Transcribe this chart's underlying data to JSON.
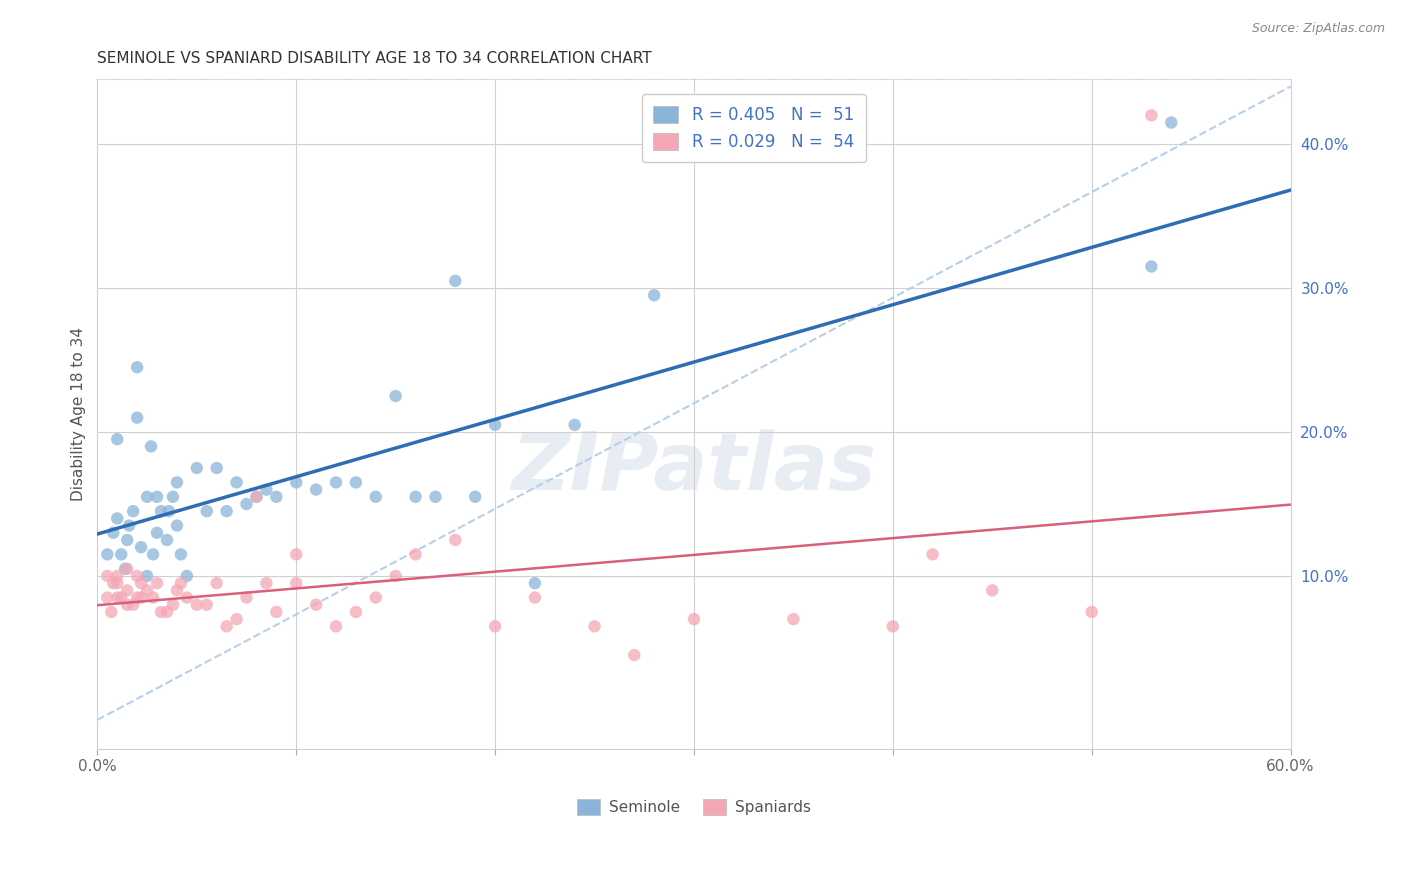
{
  "title": "SEMINOLE VS SPANIARD DISABILITY AGE 18 TO 34 CORRELATION CHART",
  "source_text": "Source: ZipAtlas.com",
  "ylabel": "Disability Age 18 to 34",
  "xlim": [
    0.0,
    0.6
  ],
  "ylim": [
    -0.02,
    0.445
  ],
  "xticks": [
    0.0,
    0.1,
    0.2,
    0.3,
    0.4,
    0.5,
    0.6
  ],
  "yticks_right": [
    0.1,
    0.2,
    0.3,
    0.4
  ],
  "ytick_labels_right": [
    "10.0%",
    "20.0%",
    "30.0%",
    "40.0%"
  ],
  "seminole_color": "#8ab4d8",
  "spaniard_color": "#f4a7b4",
  "seminole_line_color": "#2e6db4",
  "spaniard_line_color": "#d95f7a",
  "diagonal_line_color": "#b8cfe8",
  "background_color": "#ffffff",
  "grid_color": "#d0d0d0",
  "title_color": "#333333",
  "axis_label_color": "#555555",
  "right_tick_color": "#4472c4",
  "legend_box_color": "#cccccc",
  "seminole_x": [
    0.005,
    0.008,
    0.01,
    0.01,
    0.012,
    0.014,
    0.015,
    0.016,
    0.018,
    0.02,
    0.02,
    0.022,
    0.025,
    0.025,
    0.027,
    0.028,
    0.03,
    0.03,
    0.032,
    0.035,
    0.036,
    0.038,
    0.04,
    0.04,
    0.042,
    0.045,
    0.05,
    0.055,
    0.06,
    0.065,
    0.07,
    0.075,
    0.08,
    0.085,
    0.09,
    0.1,
    0.11,
    0.12,
    0.13,
    0.14,
    0.15,
    0.16,
    0.17,
    0.18,
    0.19,
    0.2,
    0.22,
    0.24,
    0.28,
    0.53,
    0.54
  ],
  "seminole_y": [
    0.115,
    0.13,
    0.14,
    0.195,
    0.115,
    0.105,
    0.125,
    0.135,
    0.145,
    0.21,
    0.245,
    0.12,
    0.1,
    0.155,
    0.19,
    0.115,
    0.13,
    0.155,
    0.145,
    0.125,
    0.145,
    0.155,
    0.135,
    0.165,
    0.115,
    0.1,
    0.175,
    0.145,
    0.175,
    0.145,
    0.165,
    0.15,
    0.155,
    0.16,
    0.155,
    0.165,
    0.16,
    0.165,
    0.165,
    0.155,
    0.225,
    0.155,
    0.155,
    0.305,
    0.155,
    0.205,
    0.095,
    0.205,
    0.295,
    0.315,
    0.415
  ],
  "spaniard_x": [
    0.005,
    0.005,
    0.007,
    0.008,
    0.01,
    0.01,
    0.01,
    0.012,
    0.015,
    0.015,
    0.015,
    0.018,
    0.02,
    0.02,
    0.022,
    0.022,
    0.025,
    0.028,
    0.03,
    0.032,
    0.035,
    0.038,
    0.04,
    0.042,
    0.045,
    0.05,
    0.055,
    0.06,
    0.065,
    0.07,
    0.075,
    0.08,
    0.085,
    0.09,
    0.1,
    0.1,
    0.11,
    0.12,
    0.13,
    0.14,
    0.15,
    0.16,
    0.18,
    0.2,
    0.22,
    0.25,
    0.27,
    0.3,
    0.35,
    0.4,
    0.42,
    0.45,
    0.5,
    0.53
  ],
  "spaniard_y": [
    0.085,
    0.1,
    0.075,
    0.095,
    0.085,
    0.095,
    0.1,
    0.085,
    0.08,
    0.09,
    0.105,
    0.08,
    0.085,
    0.1,
    0.085,
    0.095,
    0.09,
    0.085,
    0.095,
    0.075,
    0.075,
    0.08,
    0.09,
    0.095,
    0.085,
    0.08,
    0.08,
    0.095,
    0.065,
    0.07,
    0.085,
    0.155,
    0.095,
    0.075,
    0.095,
    0.115,
    0.08,
    0.065,
    0.075,
    0.085,
    0.1,
    0.115,
    0.125,
    0.065,
    0.085,
    0.065,
    0.045,
    0.07,
    0.07,
    0.065,
    0.115,
    0.09,
    0.075,
    0.42
  ],
  "diag_line_x": [
    0.0,
    0.6
  ],
  "diag_line_y": [
    0.0,
    0.44
  ]
}
